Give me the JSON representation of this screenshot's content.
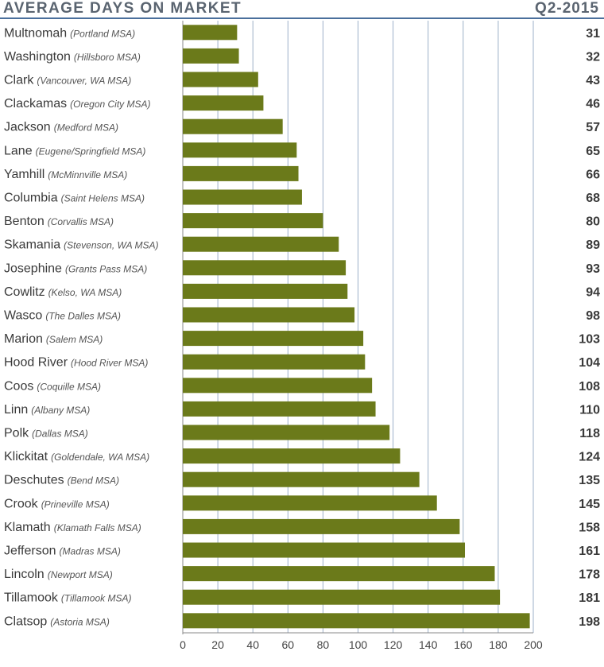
{
  "header": {
    "title": "AVERAGE DAYS ON MARKET",
    "period": "Q2-2015"
  },
  "colors": {
    "bar": "#6b7a1a",
    "grid": "#9db0c8",
    "rule": "#4a6f9c",
    "text": "#3a3a3a"
  },
  "chart_data": {
    "type": "bar",
    "orientation": "horizontal",
    "title": "AVERAGE DAYS ON MARKET",
    "subtitle": "Q2-2015",
    "xlim": [
      0,
      200
    ],
    "xticks": [
      0,
      20,
      40,
      60,
      80,
      100,
      120,
      140,
      160,
      180,
      200
    ],
    "grid": true,
    "categories": [
      {
        "name": "Multnomah",
        "msa": "(Portland MSA)",
        "value": 31
      },
      {
        "name": "Washington",
        "msa": "(Hillsboro MSA)",
        "value": 32
      },
      {
        "name": "Clark",
        "msa": "(Vancouver, WA MSA)",
        "value": 43
      },
      {
        "name": "Clackamas",
        "msa": "(Oregon City MSA)",
        "value": 46
      },
      {
        "name": "Jackson",
        "msa": "(Medford MSA)",
        "value": 57
      },
      {
        "name": "Lane",
        "msa": "(Eugene/Springfield MSA)",
        "value": 65
      },
      {
        "name": "Yamhill",
        "msa": "(McMinnville MSA)",
        "value": 66
      },
      {
        "name": "Columbia",
        "msa": "(Saint Helens MSA)",
        "value": 68
      },
      {
        "name": "Benton",
        "msa": "(Corvallis MSA)",
        "value": 80
      },
      {
        "name": "Skamania",
        "msa": "(Stevenson, WA MSA)",
        "value": 89
      },
      {
        "name": "Josephine",
        "msa": "(Grants Pass MSA)",
        "value": 93
      },
      {
        "name": "Cowlitz",
        "msa": "(Kelso, WA MSA)",
        "value": 94
      },
      {
        "name": "Wasco",
        "msa": "(The Dalles MSA)",
        "value": 98
      },
      {
        "name": "Marion",
        "msa": "(Salem MSA)",
        "value": 103
      },
      {
        "name": "Hood River",
        "msa": "(Hood River MSA)",
        "value": 104
      },
      {
        "name": "Coos",
        "msa": "(Coquille MSA)",
        "value": 108
      },
      {
        "name": "Linn",
        "msa": "(Albany MSA)",
        "value": 110
      },
      {
        "name": "Polk",
        "msa": "(Dallas MSA)",
        "value": 118
      },
      {
        "name": "Klickitat",
        "msa": "(Goldendale, WA MSA)",
        "value": 124
      },
      {
        "name": "Deschutes",
        "msa": "(Bend MSA)",
        "value": 135
      },
      {
        "name": "Crook",
        "msa": "(Prineville MSA)",
        "value": 145
      },
      {
        "name": "Klamath",
        "msa": "(Klamath Falls MSA)",
        "value": 158
      },
      {
        "name": "Jefferson",
        "msa": "(Madras MSA)",
        "value": 161
      },
      {
        "name": "Lincoln",
        "msa": "(Newport MSA)",
        "value": 178
      },
      {
        "name": "Tillamook",
        "msa": "(Tillamook MSA)",
        "value": 181
      },
      {
        "name": "Clatsop",
        "msa": "(Astoria MSA)",
        "value": 198
      }
    ]
  }
}
